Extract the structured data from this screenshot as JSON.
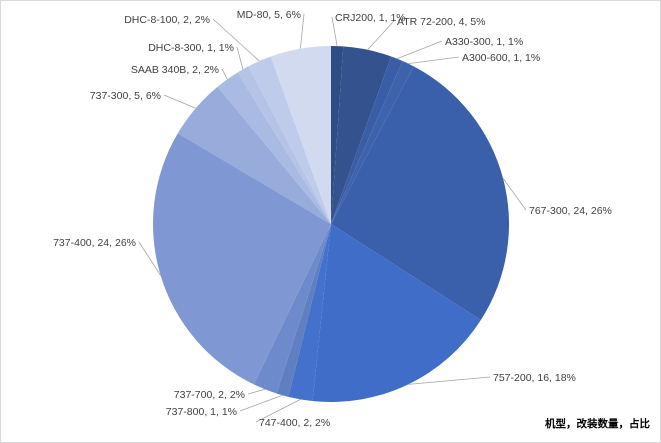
{
  "chart_data": {
    "type": "pie",
    "title": "",
    "caption": "机型，改装数量，占比",
    "slices": [
      {
        "label": "CRJ200, 1, 1%",
        "category": "CRJ200",
        "value": 1,
        "percent": 1,
        "color": "#2e4d87"
      },
      {
        "label": "ATR 72-200, 4, 5%",
        "category": "ATR 72-200",
        "value": 4,
        "percent": 5,
        "color": "#34538e"
      },
      {
        "label": "A330-300, 1, 1%",
        "category": "A330-300",
        "value": 1,
        "percent": 1,
        "color": "#3a5ea6"
      },
      {
        "label": "A300-600, 1, 1%",
        "category": "A300-600",
        "value": 1,
        "percent": 1,
        "color": "#3d63ad"
      },
      {
        "label": "767-300, 24, 26%",
        "category": "767-300",
        "value": 24,
        "percent": 26,
        "color": "#3a5fab"
      },
      {
        "label": "757-200, 16, 18%",
        "category": "757-200",
        "value": 16,
        "percent": 18,
        "color": "#3f6dc8"
      },
      {
        "label": "747-400, 2, 2%",
        "category": "747-400",
        "value": 2,
        "percent": 2,
        "color": "#4371cc"
      },
      {
        "label": "737-800, 1, 1%",
        "category": "737-800",
        "value": 1,
        "percent": 1,
        "color": "#5f7fc0"
      },
      {
        "label": "737-700, 2, 2%",
        "category": "737-700",
        "value": 2,
        "percent": 2,
        "color": "#6d8bcc"
      },
      {
        "label": "737-400, 24, 26%",
        "category": "737-400",
        "value": 24,
        "percent": 26,
        "color": "#7f98d4"
      },
      {
        "label": "737-300, 5, 6%",
        "category": "737-300",
        "value": 5,
        "percent": 6,
        "color": "#97acdb"
      },
      {
        "label": "SAAB 340B, 2, 2%",
        "category": "SAAB 340B",
        "value": 2,
        "percent": 2,
        "color": "#a9bbe2"
      },
      {
        "label": "DHC-8-300, 1, 1%",
        "category": "DHC-8-300",
        "value": 1,
        "percent": 1,
        "color": "#b4c3e6"
      },
      {
        "label": "DHC-8-100, 2, 2%",
        "category": "DHC-8-100",
        "value": 2,
        "percent": 2,
        "color": "#bfcbea"
      },
      {
        "label": "MD-80, 5, 6%",
        "category": "MD-80",
        "value": 5,
        "percent": 6,
        "color": "#d2daf0"
      }
    ]
  }
}
